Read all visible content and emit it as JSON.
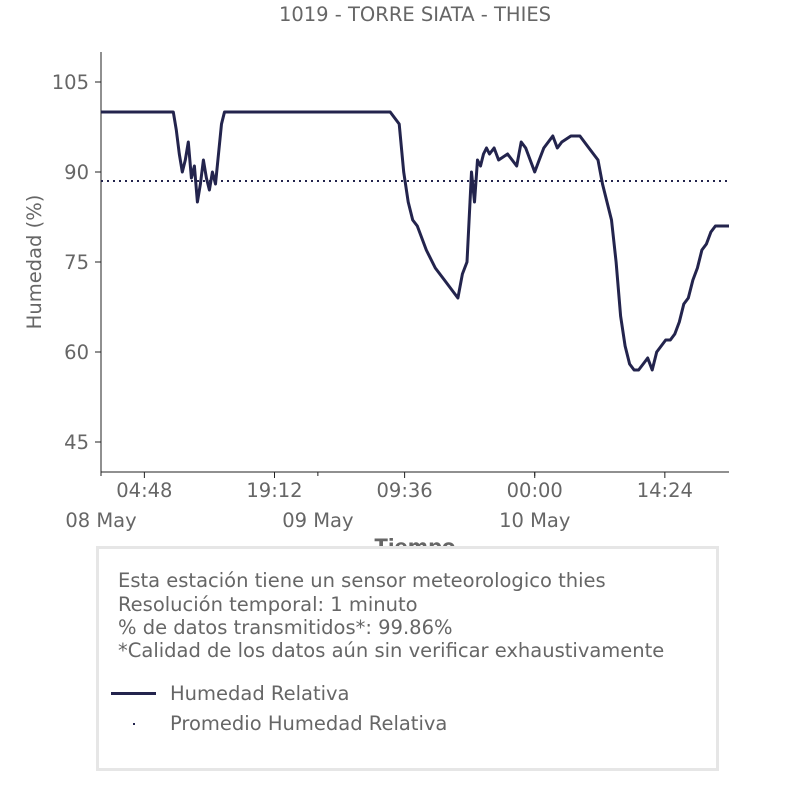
{
  "chart_data": {
    "type": "line",
    "title": "1019 - TORRE SIATA - THIES",
    "xlabel": "Tiempo",
    "ylabel": "Humedad (%)",
    "yticks": [
      45,
      60,
      75,
      90,
      105
    ],
    "ylim": [
      40,
      110
    ],
    "xlim": [
      "2024-05-08 00:00",
      "2024-05-10 21:30"
    ],
    "xtick_labels": [
      {
        "x": "2024-05-08 04:48",
        "time": "04:48",
        "date": "08 May"
      },
      {
        "x": "2024-05-08 19:12",
        "time": "19:12",
        "date": ""
      },
      {
        "x": "2024-05-09 09:36",
        "time": "09:36",
        "date": "09 May"
      },
      {
        "x": "2024-05-10 00:00",
        "time": "00:00",
        "date": "10 May"
      },
      {
        "x": "2024-05-10 14:24",
        "time": "14:24",
        "date": ""
      }
    ],
    "day_labels": [
      {
        "x": "2024-05-08 00:00",
        "label": "08 May"
      },
      {
        "x": "2024-05-09 00:00",
        "label": "09 May"
      },
      {
        "x": "2024-05-10 00:00",
        "label": "10 May"
      }
    ],
    "grid": false,
    "series": [
      {
        "name": "Humedad Relativa",
        "color": "#23244d",
        "style": "solid",
        "x": [
          "2024-05-08 00:00",
          "2024-05-08 08:00",
          "2024-05-08 08:20",
          "2024-05-08 08:40",
          "2024-05-08 09:00",
          "2024-05-08 09:20",
          "2024-05-08 09:40",
          "2024-05-08 10:00",
          "2024-05-08 10:20",
          "2024-05-08 10:40",
          "2024-05-08 11:00",
          "2024-05-08 11:20",
          "2024-05-08 11:40",
          "2024-05-08 12:00",
          "2024-05-08 12:20",
          "2024-05-08 12:40",
          "2024-05-08 13:00",
          "2024-05-08 13:20",
          "2024-05-08 13:40",
          "2024-05-08 14:00",
          "2024-05-08 14:20",
          "2024-05-08 14:40",
          "2024-05-08 15:00",
          "2024-05-08 15:20",
          "2024-05-08 15:40",
          "2024-05-08 16:00",
          "2024-05-08 16:20",
          "2024-05-08 17:00",
          "2024-05-09 08:00",
          "2024-05-09 08:30",
          "2024-05-09 09:00",
          "2024-05-09 09:30",
          "2024-05-09 10:00",
          "2024-05-09 10:30",
          "2024-05-09 11:00",
          "2024-05-09 12:00",
          "2024-05-09 13:00",
          "2024-05-09 14:00",
          "2024-05-09 15:00",
          "2024-05-09 15:30",
          "2024-05-09 16:00",
          "2024-05-09 16:30",
          "2024-05-09 17:00",
          "2024-05-09 17:20",
          "2024-05-09 17:40",
          "2024-05-09 18:00",
          "2024-05-09 18:20",
          "2024-05-09 18:40",
          "2024-05-09 19:00",
          "2024-05-09 19:30",
          "2024-05-09 20:00",
          "2024-05-09 21:00",
          "2024-05-09 22:00",
          "2024-05-09 22:30",
          "2024-05-09 23:00",
          "2024-05-10 00:00",
          "2024-05-10 00:30",
          "2024-05-10 01:00",
          "2024-05-10 01:30",
          "2024-05-10 02:00",
          "2024-05-10 02:30",
          "2024-05-10 03:00",
          "2024-05-10 04:00",
          "2024-05-10 05:00",
          "2024-05-10 06:00",
          "2024-05-10 07:00",
          "2024-05-10 07:30",
          "2024-05-10 08:00",
          "2024-05-10 08:30",
          "2024-05-10 09:00",
          "2024-05-10 09:30",
          "2024-05-10 10:00",
          "2024-05-10 10:30",
          "2024-05-10 11:00",
          "2024-05-10 11:30",
          "2024-05-10 12:00",
          "2024-05-10 12:30",
          "2024-05-10 13:00",
          "2024-05-10 13:30",
          "2024-05-10 14:00",
          "2024-05-10 14:30",
          "2024-05-10 15:00",
          "2024-05-10 15:30",
          "2024-05-10 16:00",
          "2024-05-10 16:30",
          "2024-05-10 17:00",
          "2024-05-10 17:30",
          "2024-05-10 18:00",
          "2024-05-10 18:30",
          "2024-05-10 19:00",
          "2024-05-10 19:30",
          "2024-05-10 20:00",
          "2024-05-10 20:30",
          "2024-05-10 21:00",
          "2024-05-10 21:30"
        ],
        "y": [
          100,
          100,
          97,
          93,
          90,
          92,
          95,
          89,
          91,
          85,
          88,
          92,
          89,
          87,
          90,
          88,
          93,
          98,
          100,
          100,
          100,
          100,
          100,
          100,
          100,
          100,
          100,
          100,
          100,
          99,
          98,
          90,
          85,
          82,
          81,
          77,
          74,
          72,
          70,
          69,
          73,
          75,
          90,
          85,
          92,
          91,
          93,
          94,
          93,
          94,
          92,
          93,
          91,
          95,
          94,
          90,
          92,
          94,
          95,
          96,
          94,
          95,
          96,
          96,
          94,
          92,
          88,
          85,
          82,
          75,
          66,
          61,
          58,
          57,
          57,
          58,
          59,
          57,
          60,
          61,
          62,
          62,
          63,
          65,
          68,
          69,
          72,
          74,
          77,
          78,
          80,
          81,
          81,
          81,
          81
        ]
      },
      {
        "name": "Promedio Humedad Relativa",
        "color": "#23244d",
        "style": "dotted",
        "value": 88.5
      }
    ]
  },
  "info": {
    "line1": "Esta estación tiene un sensor meteorologico thies",
    "line2": "Resolución temporal: 1 minuto",
    "line3": "% de datos transmitidos*: 99.86%",
    "line4": "*Calidad de los datos aún sin verificar exhaustivamente"
  },
  "legend": {
    "item1": "Humedad Relativa",
    "item2": "Promedio Humedad Relativa"
  }
}
